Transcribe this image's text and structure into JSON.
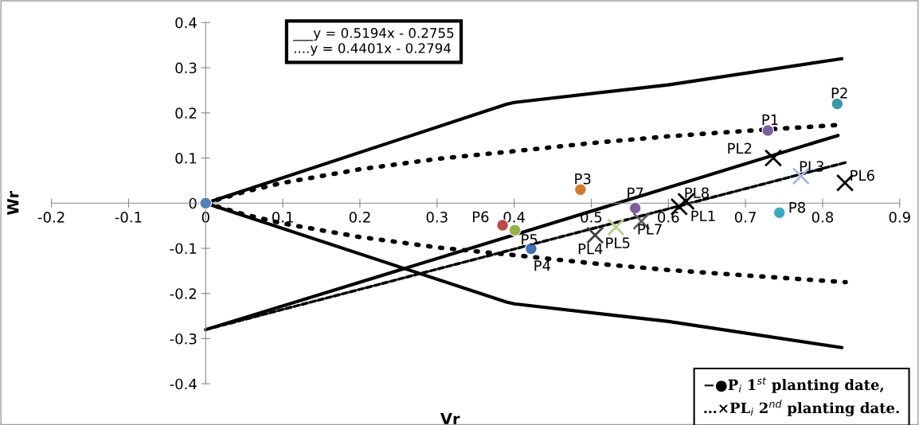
{
  "chart_data": {
    "type": "scatter",
    "xlabel": "Vr",
    "ylabel": "Wr",
    "xlim": [
      -0.2,
      0.9
    ],
    "ylim": [
      -0.4,
      0.4
    ],
    "xticks": [
      -0.2,
      -0.1,
      0,
      0.1,
      0.2,
      0.3,
      0.4,
      0.5,
      0.6,
      0.7,
      0.8,
      0.9
    ],
    "yticks": [
      -0.4,
      -0.3,
      -0.2,
      -0.1,
      0,
      0.1,
      0.2,
      0.3,
      0.4
    ],
    "grid": false,
    "annotations": [
      "___y = 0.5194x - 0.2755\n....y = 0.4401x - 0.2794",
      "−●P$_{i}$ 1$^{st}$ planting date,\n…×PL$_{i}$ 2$^{nd}$ planting date."
    ],
    "series": [
      {
        "type": "line",
        "line_style": "solid",
        "color": "#000000",
        "x": [
          0,
          0.39,
          0.4,
          0.6,
          0.825
        ],
        "values": [
          0,
          0.219,
          0.223,
          0.262,
          0.32
        ]
      },
      {
        "type": "line",
        "line_style": "solid",
        "color": "#000000",
        "x": [
          0,
          0.39,
          0.4,
          0.6,
          0.825
        ],
        "values": [
          0,
          -0.219,
          -0.223,
          -0.262,
          -0.32
        ]
      },
      {
        "type": "line",
        "line_style": "dotted",
        "color": "#000000",
        "x": [
          0,
          0.05,
          0.1,
          0.2,
          0.3,
          0.4,
          0.5,
          0.6,
          0.7,
          0.82
        ],
        "values": [
          0,
          0.025,
          0.045,
          0.075,
          0.098,
          0.115,
          0.133,
          0.148,
          0.16,
          0.173
        ]
      },
      {
        "type": "line",
        "line_style": "dotted",
        "color": "#000000",
        "x": [
          0,
          0.05,
          0.1,
          0.2,
          0.3,
          0.4,
          0.5,
          0.6,
          0.7,
          0.83
        ],
        "values": [
          0,
          -0.025,
          -0.045,
          -0.075,
          -0.098,
          -0.115,
          -0.133,
          -0.148,
          -0.16,
          -0.175
        ]
      },
      {
        "type": "line",
        "line_style": "solid",
        "color": "#000000",
        "x": [
          0,
          0.82
        ],
        "values": [
          -0.28,
          0.15
        ]
      },
      {
        "type": "line",
        "line_style": "dashed",
        "color": "#000000",
        "x": [
          0,
          0.83
        ],
        "values": [
          -0.28,
          0.09
        ]
      },
      {
        "type": "scatter",
        "marker": "circle",
        "x": [
          0,
          0.729,
          0.819,
          0.486,
          0.422,
          0.401,
          0.385,
          0.557,
          0.744
        ],
        "values": [
          0,
          0.161,
          0.22,
          0.03,
          -0.101,
          -0.06,
          -0.049,
          -0.011,
          -0.021
        ],
        "colors": [
          "#4f81bd",
          "#7f5fa0",
          "#3b98ac",
          "#d17b2d",
          "#3f6fb5",
          "#8fb04a",
          "#b94a48",
          "#7f5fa0",
          "#3ca8c0"
        ],
        "value_labels": [
          null,
          "P1",
          "P2",
          "P3",
          "P4",
          "P5",
          "P6",
          "P7",
          "P8"
        ]
      },
      {
        "type": "scatter",
        "marker": "cross",
        "x": [
          0.614,
          0.736,
          0.772,
          0.505,
          0.532,
          0.829,
          0.565,
          0.623
        ],
        "values": [
          -0.008,
          0.1,
          0.06,
          -0.071,
          -0.053,
          0.045,
          -0.04,
          0.004
        ],
        "colors": [
          "#000000",
          "#000000",
          "#a6b9dd",
          "#404040",
          "#b6cf8c",
          "#000000",
          "#606060",
          "#000000"
        ],
        "value_labels": [
          "PL1",
          "PL2",
          "PL3",
          "PL4",
          "PL5",
          "PL6",
          "PL7",
          "PL8"
        ]
      }
    ]
  }
}
